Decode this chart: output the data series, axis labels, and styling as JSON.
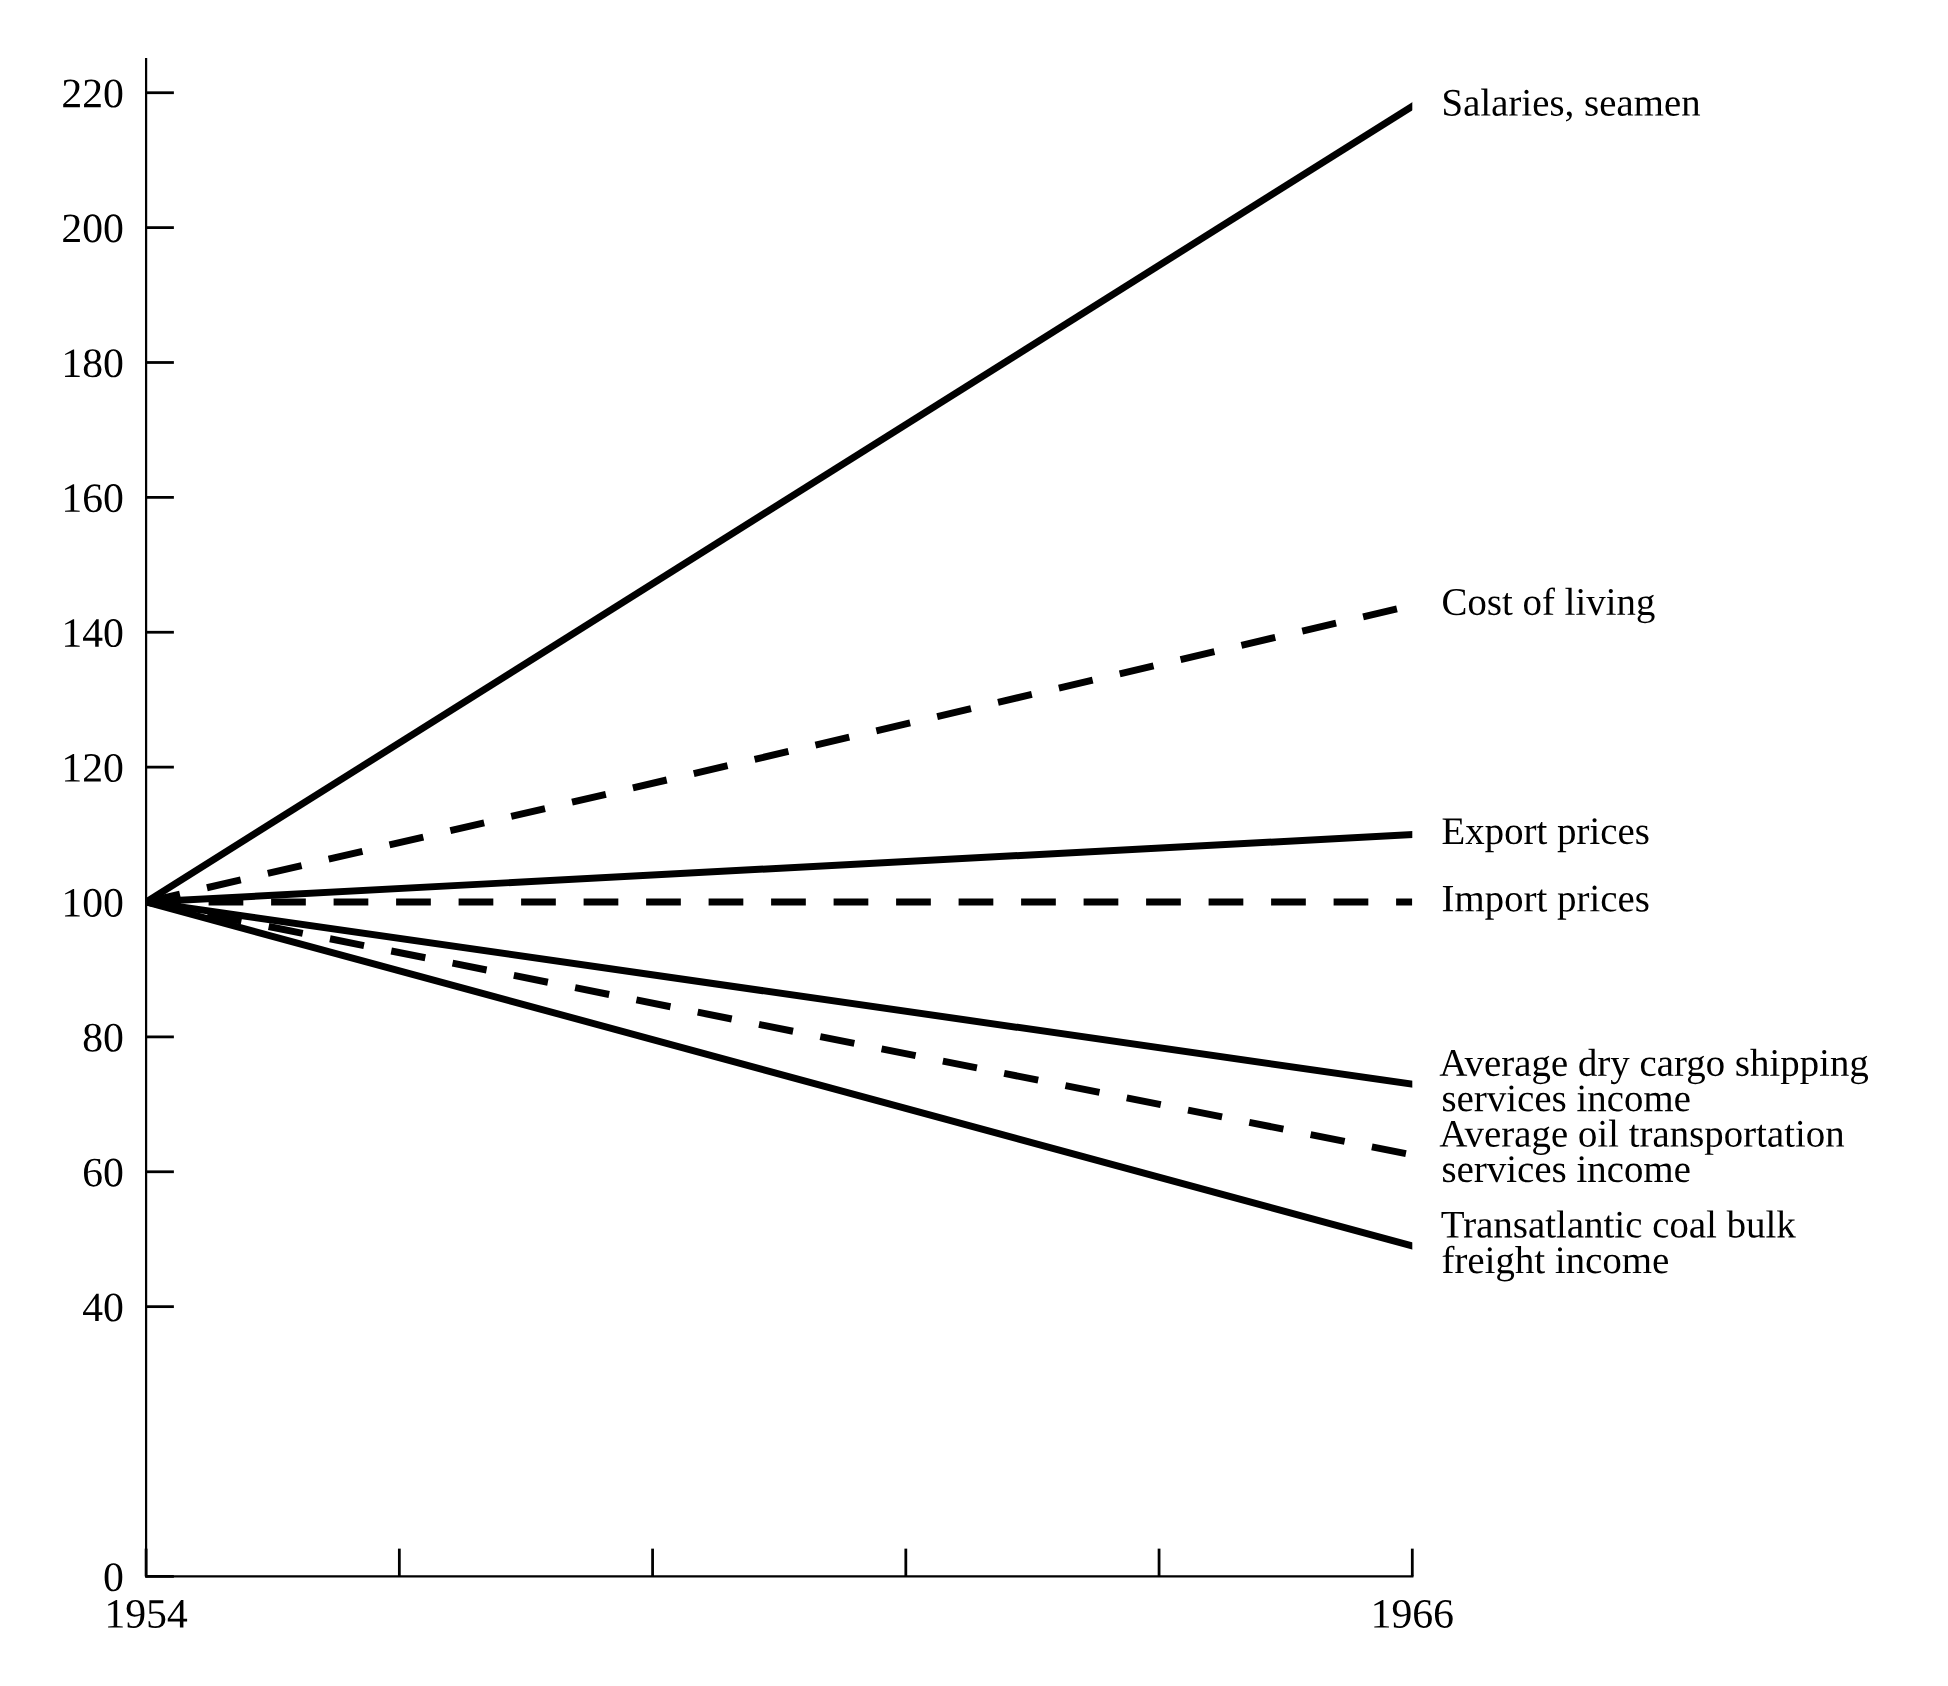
{
  "chart_data": {
    "type": "line",
    "x": [
      1954,
      1966
    ],
    "series": [
      {
        "name": "Salaries, seamen",
        "color": "#000000",
        "line_style": "solid",
        "values": [
          100,
          218
        ]
      },
      {
        "name": "Cost of living",
        "color": "#000000",
        "line_style": "dashed",
        "values": [
          100,
          144
        ]
      },
      {
        "name": "Export prices",
        "color": "#000000",
        "line_style": "solid",
        "values": [
          100,
          110
        ]
      },
      {
        "name": "Import prices",
        "color": "#000000",
        "line_style": "dashed",
        "values": [
          100,
          100
        ]
      },
      {
        "name": "Average dry cargo shipping\nservices income",
        "color": "#000000",
        "line_style": "solid",
        "values": [
          100,
          73
        ]
      },
      {
        "name": "Average oil transportation\nservices income",
        "color": "#000000",
        "line_style": "dashed",
        "values": [
          100,
          62.5
        ]
      },
      {
        "name": "Transatlantic coal bulk\nfreight income",
        "color": "#000000",
        "line_style": "solid",
        "values": [
          100,
          49
        ]
      }
    ],
    "xlim": [
      1954,
      1966
    ],
    "xticks": [
      1954,
      {
        "value": 1956.4,
        "label": null
      },
      {
        "value": 1958.8,
        "label": null
      },
      {
        "value": 1961.2,
        "label": null
      },
      {
        "value": 1963.6,
        "label": null
      },
      1966
    ],
    "ylim": [
      0,
      225
    ],
    "yticks": [
      0,
      40,
      60,
      80,
      100,
      120,
      140,
      160,
      180,
      200,
      220
    ],
    "grid": false,
    "legend": false,
    "marker": "none"
  }
}
